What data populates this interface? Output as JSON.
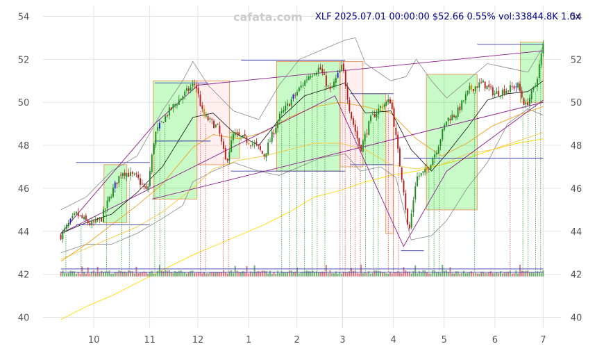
{
  "header": {
    "watermark": "cafata.com",
    "info": "XLF 2025.07.01 00:00:00 $52.66 0.55% vol:33844.8K 1.0x"
  },
  "chart_data": {
    "type": "candlestick",
    "symbol": "XLF",
    "last_price": 52.66,
    "change_pct": 0.55,
    "grid": true,
    "ylim": [
      39.5,
      54.5
    ],
    "y_ticks": [
      40,
      42,
      44,
      46,
      48,
      50,
      52,
      54
    ],
    "y_tick_labels": [
      "40",
      "42",
      "44",
      "46",
      "48",
      "50",
      "52",
      "54"
    ],
    "x_ticks": [
      {
        "label": "10",
        "x": 0.65
      },
      {
        "label": "11",
        "x": 1.75
      },
      {
        "label": "12",
        "x": 2.7
      },
      {
        "label": "1",
        "x": 3.7
      },
      {
        "label": "2",
        "x": 4.65
      },
      {
        "label": "3",
        "x": 5.55
      },
      {
        "label": "4",
        "x": 6.55
      },
      {
        "label": "5",
        "x": 7.55
      },
      {
        "label": "6",
        "x": 8.55
      },
      {
        "label": "7",
        "x": 9.5
      }
    ],
    "price_path": [
      [
        0,
        43.8
      ],
      [
        0.3,
        44.8
      ],
      [
        0.6,
        44.3
      ],
      [
        0.8,
        44.6
      ],
      [
        1.0,
        45.8
      ],
      [
        1.2,
        46.8
      ],
      [
        1.5,
        46.5
      ],
      [
        1.7,
        45.8
      ],
      [
        1.85,
        48.5
      ],
      [
        2.1,
        49.5
      ],
      [
        2.4,
        50.3
      ],
      [
        2.65,
        50.9
      ],
      [
        2.8,
        49.4
      ],
      [
        3.1,
        48.8
      ],
      [
        3.25,
        47.2
      ],
      [
        3.4,
        48.5
      ],
      [
        3.6,
        48.3
      ],
      [
        3.85,
        48.0
      ],
      [
        4.0,
        47.5
      ],
      [
        4.3,
        49.3
      ],
      [
        4.6,
        50.3
      ],
      [
        4.9,
        51.3
      ],
      [
        5.1,
        51.6
      ],
      [
        5.3,
        50.5
      ],
      [
        5.55,
        51.7
      ],
      [
        5.7,
        49.5
      ],
      [
        5.9,
        47.8
      ],
      [
        6.1,
        49.2
      ],
      [
        6.3,
        49.8
      ],
      [
        6.5,
        50.1
      ],
      [
        6.65,
        47.5
      ],
      [
        6.75,
        46.0
      ],
      [
        6.85,
        43.8
      ],
      [
        7.0,
        46.5
      ],
      [
        7.2,
        46.8
      ],
      [
        7.4,
        47.8
      ],
      [
        7.6,
        49.2
      ],
      [
        7.8,
        49.5
      ],
      [
        8.05,
        50.6
      ],
      [
        8.3,
        50.9
      ],
      [
        8.55,
        50.4
      ],
      [
        8.8,
        50.6
      ],
      [
        9.0,
        50.8
      ],
      [
        9.15,
        49.8
      ],
      [
        9.35,
        50.8
      ],
      [
        9.5,
        52.66
      ]
    ],
    "boxes": [
      {
        "x0": 0.85,
        "x1": 1.3,
        "y0": 44.4,
        "y1": 47.1,
        "color": "green"
      },
      {
        "x0": 1.82,
        "x1": 2.68,
        "y0": 45.5,
        "y1": 51.0,
        "color": "green"
      },
      {
        "x0": 2.68,
        "x1": 3.32,
        "y0": 47.1,
        "y1": 51.0,
        "color": "red"
      },
      {
        "x0": 3.32,
        "x1": 3.52,
        "y0": 47.4,
        "y1": 48.6,
        "color": "green"
      },
      {
        "x0": 4.25,
        "x1": 5.5,
        "y0": 46.8,
        "y1": 51.9,
        "color": "green"
      },
      {
        "x0": 5.5,
        "x1": 5.95,
        "y0": 47.0,
        "y1": 51.9,
        "color": "red"
      },
      {
        "x0": 5.95,
        "x1": 6.4,
        "y0": 47.1,
        "y1": 50.4,
        "color": "green"
      },
      {
        "x0": 6.4,
        "x1": 6.55,
        "y0": 43.9,
        "y1": 50.1,
        "color": "red"
      },
      {
        "x0": 7.2,
        "x1": 8.2,
        "y0": 45.0,
        "y1": 51.3,
        "color": "green"
      },
      {
        "x0": 9.05,
        "x1": 9.5,
        "y0": 50.0,
        "y1": 52.8,
        "color": "green"
      }
    ],
    "levels": [
      {
        "x0": 0.3,
        "x1": 1.75,
        "y": 47.2
      },
      {
        "x0": 0.3,
        "x1": 1.75,
        "y": 44.3
      },
      {
        "x0": 1.85,
        "x1": 2.9,
        "y": 50.9
      },
      {
        "x0": 1.85,
        "x1": 2.95,
        "y": 48.2
      },
      {
        "x0": 3.35,
        "x1": 5.6,
        "y": 46.8
      },
      {
        "x0": 3.55,
        "x1": 5.6,
        "y": 51.95
      },
      {
        "x0": 5.7,
        "x1": 6.55,
        "y": 50.4
      },
      {
        "x0": 5.7,
        "x1": 6.55,
        "y": 47.1
      },
      {
        "x0": 6.7,
        "x1": 7.15,
        "y": 43.1
      },
      {
        "x0": 6.75,
        "x1": 9.5,
        "y": 47.4
      },
      {
        "x0": 8.2,
        "x1": 9.5,
        "y": 52.7
      },
      {
        "x0": 0,
        "x1": 9.5,
        "y": 42.25
      },
      {
        "x0": 0,
        "x1": 9.5,
        "y": 42.1
      }
    ],
    "trend_lines": [
      {
        "points": [
          [
            0,
            43.9
          ],
          [
            1.85,
            49.0
          ],
          [
            2.7,
            50.8
          ]
        ]
      },
      {
        "points": [
          [
            0,
            43.9
          ],
          [
            5.4,
            50.3
          ],
          [
            6.75,
            43.3
          ],
          [
            7.6,
            46.8
          ],
          [
            9.5,
            50.1
          ]
        ]
      },
      {
        "points": [
          [
            2.7,
            50.8
          ],
          [
            9.5,
            52.4
          ]
        ]
      },
      {
        "points": [
          [
            1.8,
            45.5
          ],
          [
            9.5,
            50.0
          ]
        ]
      }
    ],
    "ma_short": [
      [
        0,
        43.9
      ],
      [
        0.5,
        44.4
      ],
      [
        1.0,
        44.8
      ],
      [
        1.5,
        45.8
      ],
      [
        2.0,
        47.0
      ],
      [
        2.6,
        49.3
      ],
      [
        3.0,
        49.5
      ],
      [
        3.4,
        48.6
      ],
      [
        3.9,
        48.0
      ],
      [
        4.3,
        49.2
      ],
      [
        4.8,
        50.3
      ],
      [
        5.2,
        50.6
      ],
      [
        5.6,
        50.9
      ],
      [
        6.0,
        49.5
      ],
      [
        6.5,
        49.6
      ],
      [
        6.9,
        47.8
      ],
      [
        7.3,
        46.8
      ],
      [
        7.6,
        47.6
      ],
      [
        8.0,
        48.8
      ],
      [
        8.4,
        50.1
      ],
      [
        8.8,
        50.4
      ],
      [
        9.2,
        50.5
      ],
      [
        9.5,
        51.0
      ]
    ],
    "ma_mid": [
      [
        0,
        42.6
      ],
      [
        0.5,
        43.4
      ],
      [
        1.0,
        44.3
      ],
      [
        1.5,
        45.2
      ],
      [
        2.0,
        46.2
      ],
      [
        2.6,
        47.9
      ],
      [
        3.0,
        48.5
      ],
      [
        3.5,
        48.3
      ],
      [
        4.0,
        48.6
      ],
      [
        4.5,
        49.3
      ],
      [
        5.0,
        49.8
      ],
      [
        5.5,
        50.0
      ],
      [
        6.0,
        49.8
      ],
      [
        6.5,
        49.5
      ],
      [
        7.0,
        48.3
      ],
      [
        7.5,
        47.5
      ],
      [
        8.0,
        48.1
      ],
      [
        8.5,
        48.9
      ],
      [
        9.0,
        49.4
      ],
      [
        9.5,
        49.8
      ]
    ],
    "ma_long": [
      [
        0,
        42.7
      ],
      [
        0.5,
        43.2
      ],
      [
        1.0,
        43.7
      ],
      [
        1.5,
        44.2
      ],
      [
        2.0,
        44.9
      ],
      [
        2.6,
        46.0
      ],
      [
        3.0,
        46.9
      ],
      [
        3.5,
        47.3
      ],
      [
        4.0,
        47.5
      ],
      [
        4.5,
        47.8
      ],
      [
        5.0,
        48.1
      ],
      [
        5.5,
        48.1
      ],
      [
        6.0,
        47.8
      ],
      [
        6.5,
        47.1
      ],
      [
        7.0,
        46.9
      ],
      [
        7.5,
        47.1
      ],
      [
        8.0,
        47.6
      ],
      [
        8.5,
        47.8
      ],
      [
        9.0,
        48.2
      ],
      [
        9.5,
        48.6
      ]
    ],
    "ma_200": [
      [
        0,
        39.9
      ],
      [
        0.5,
        40.5
      ],
      [
        1.0,
        41.0
      ],
      [
        1.5,
        41.6
      ],
      [
        2.0,
        42.2
      ],
      [
        2.6,
        42.9
      ],
      [
        3.0,
        43.3
      ],
      [
        3.5,
        43.8
      ],
      [
        4.0,
        44.3
      ],
      [
        4.5,
        44.9
      ],
      [
        5.0,
        45.6
      ],
      [
        5.5,
        45.9
      ],
      [
        6.0,
        46.3
      ],
      [
        6.5,
        46.6
      ],
      [
        7.0,
        46.8
      ],
      [
        7.5,
        47.1
      ],
      [
        8.0,
        47.4
      ],
      [
        8.5,
        47.8
      ],
      [
        9.0,
        48.1
      ],
      [
        9.5,
        48.3
      ]
    ],
    "bb_upper": [
      [
        0,
        45.0
      ],
      [
        0.5,
        45.6
      ],
      [
        1.0,
        46.8
      ],
      [
        1.5,
        47.5
      ],
      [
        2.0,
        49.6
      ],
      [
        2.4,
        51.0
      ],
      [
        2.6,
        51.9
      ],
      [
        2.9,
        50.8
      ],
      [
        3.4,
        49.6
      ],
      [
        3.9,
        49.2
      ],
      [
        4.3,
        50.8
      ],
      [
        4.7,
        52.0
      ],
      [
        5.1,
        52.4
      ],
      [
        5.6,
        52.9
      ],
      [
        5.8,
        53.0
      ],
      [
        6.0,
        51.8
      ],
      [
        6.5,
        51.0
      ],
      [
        6.8,
        51.2
      ],
      [
        7.0,
        52.0
      ],
      [
        7.3,
        51.0
      ],
      [
        7.6,
        50.2
      ],
      [
        8.0,
        51.0
      ],
      [
        8.4,
        51.8
      ],
      [
        8.8,
        51.6
      ],
      [
        9.2,
        51.4
      ],
      [
        9.5,
        52.6
      ]
    ],
    "bb_lower": [
      [
        0,
        43.0
      ],
      [
        0.5,
        43.4
      ],
      [
        1.0,
        43.4
      ],
      [
        1.5,
        43.9
      ],
      [
        2.0,
        44.6
      ],
      [
        2.4,
        45.2
      ],
      [
        2.6,
        46.3
      ],
      [
        3.0,
        46.8
      ],
      [
        3.4,
        47.2
      ],
      [
        3.9,
        46.8
      ],
      [
        4.3,
        46.6
      ],
      [
        4.7,
        47.0
      ],
      [
        5.1,
        47.4
      ],
      [
        5.6,
        47.6
      ],
      [
        5.9,
        46.8
      ],
      [
        6.3,
        47.0
      ],
      [
        6.6,
        46.5
      ],
      [
        6.9,
        43.6
      ],
      [
        7.3,
        43.8
      ],
      [
        7.6,
        44.5
      ],
      [
        8.0,
        46.0
      ],
      [
        8.4,
        47.2
      ],
      [
        8.8,
        49.0
      ],
      [
        9.2,
        49.7
      ],
      [
        9.5,
        49.4
      ]
    ],
    "signals": {
      "green": [
        0.1,
        0.4,
        0.9,
        1.2,
        1.35,
        1.85,
        1.95,
        2.05,
        4.35,
        4.5,
        4.65,
        4.8,
        4.95,
        5.05,
        5.2,
        6.0,
        6.15,
        6.25,
        7.25,
        7.35,
        7.45,
        8.15,
        9.1,
        9.2,
        9.35,
        9.45
      ],
      "red": [
        2.75,
        2.85,
        3.2,
        3.3,
        5.5,
        5.6,
        5.7,
        5.8,
        5.9,
        6.45,
        6.55,
        6.65,
        8.85
      ]
    }
  }
}
